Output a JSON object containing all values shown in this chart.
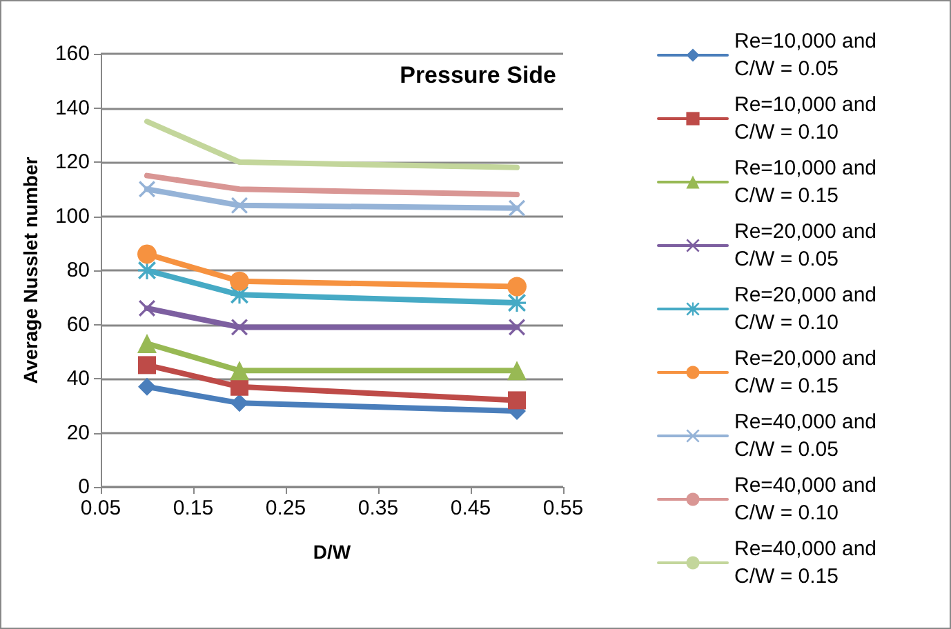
{
  "chart_data": {
    "type": "line",
    "title": "Pressure Side",
    "xlabel": "D/W",
    "ylabel": "Average Nusslet number",
    "x": [
      0.1,
      0.2,
      0.5
    ],
    "series": [
      {
        "name": "Re=10,000 and C/W = 0.05",
        "color": "#4a7ebb",
        "marker": "diamond",
        "values": [
          37,
          31,
          28
        ]
      },
      {
        "name": "Re=10,000 and C/W = 0.10",
        "color": "#be4b48",
        "marker": "square",
        "values": [
          45,
          37,
          32
        ]
      },
      {
        "name": "Re=10,000 and C/W = 0.15",
        "color": "#98b954",
        "marker": "triangle",
        "values": [
          53,
          43,
          43
        ]
      },
      {
        "name": "Re=20,000 and C/W = 0.05",
        "color": "#7d5fa0",
        "marker": "cross",
        "values": [
          66,
          59,
          59
        ]
      },
      {
        "name": "Re=20,000 and C/W = 0.10",
        "color": "#46aac5",
        "marker": "star",
        "values": [
          80,
          71,
          68
        ]
      },
      {
        "name": "Re=20,000 and C/W = 0.15",
        "color": "#f69240",
        "marker": "circle",
        "values": [
          86,
          76,
          74
        ]
      },
      {
        "name": "Re=40,000 and C/W = 0.05",
        "color": "#95b3d7",
        "marker": "cross",
        "values": [
          110,
          104,
          103
        ]
      },
      {
        "name": "Re=40,000 and C/W = 0.10",
        "color": "#d99694",
        "marker": "none",
        "values": [
          115,
          110,
          108
        ]
      },
      {
        "name": "Re=40,000 and C/W = 0.15",
        "color": "#c3d69b",
        "marker": "none",
        "values": [
          135,
          120,
          118
        ]
      }
    ],
    "xlim": [
      0.05,
      0.55
    ],
    "xticks": [
      0.05,
      0.15,
      0.25,
      0.35,
      0.45,
      0.55
    ],
    "ylim": [
      0,
      160
    ],
    "yticks": [
      0,
      20,
      40,
      60,
      80,
      100,
      120,
      140,
      160
    ],
    "grid": "y",
    "legend": "right",
    "line_style": "solid"
  }
}
